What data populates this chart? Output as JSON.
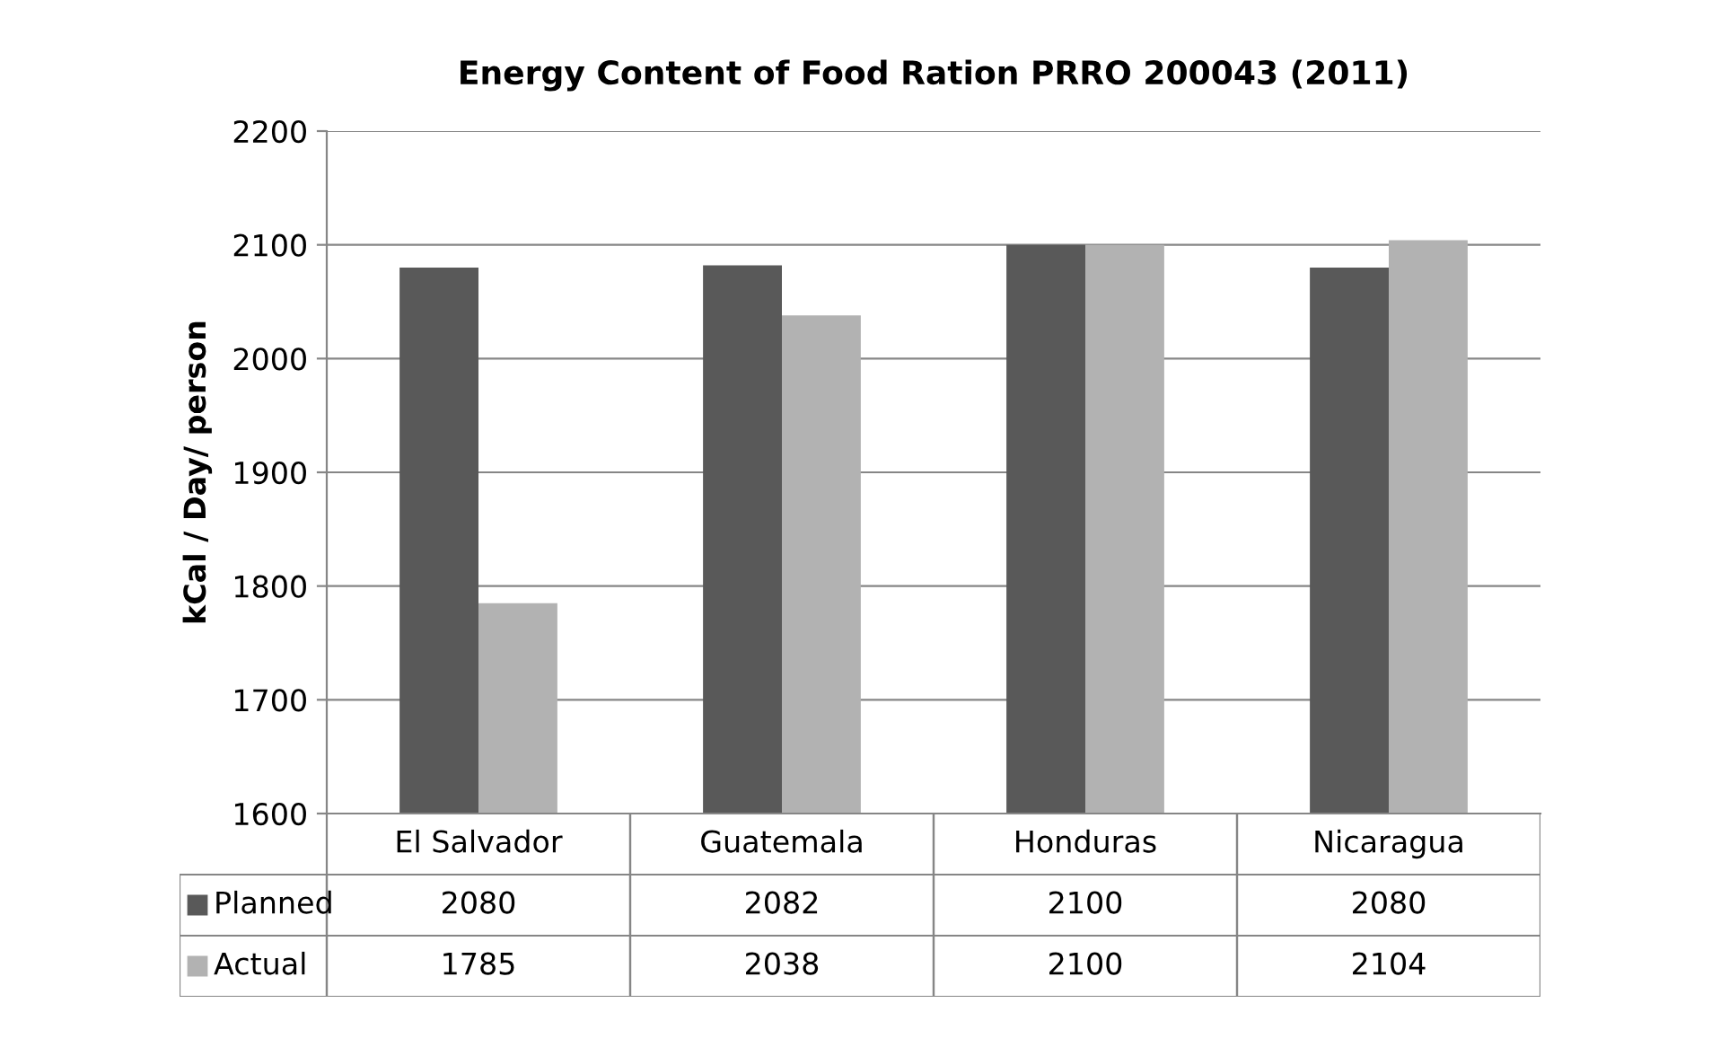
{
  "chart_data": {
    "type": "bar",
    "title": "Energy Content of Food Ration PRRO 200043 (2011)",
    "ylabel": "kCal / Day/ person",
    "categories": [
      "El Salvador",
      "Guatemala",
      "Honduras",
      "Nicaragua"
    ],
    "series": [
      {
        "name": "Planned",
        "color": "#595959",
        "values": [
          2080,
          2082,
          2100,
          2080
        ]
      },
      {
        "name": "Actual",
        "color": "#b2b2b2",
        "values": [
          1785,
          2038,
          2100,
          2104
        ]
      }
    ],
    "ylim": [
      1600,
      2200
    ],
    "yticks": [
      1600,
      1700,
      1800,
      1900,
      2000,
      2100,
      2200
    ],
    "grid": "y",
    "legend": "bottom",
    "data_labels": true
  }
}
